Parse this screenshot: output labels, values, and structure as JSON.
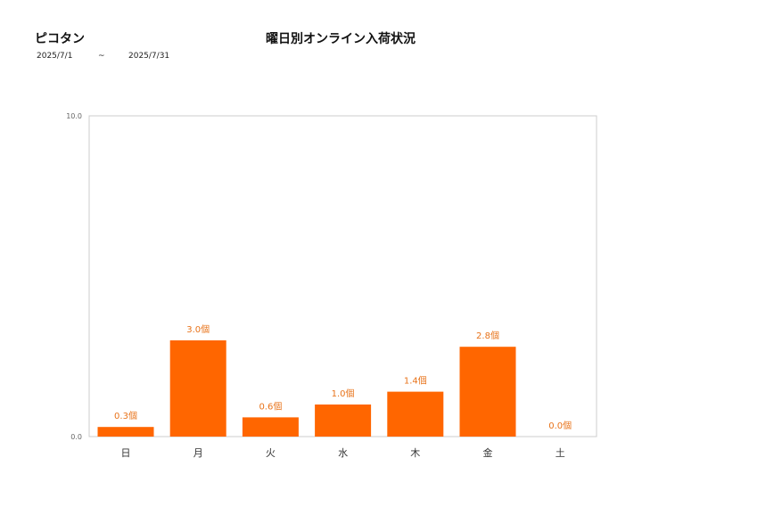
{
  "header": {
    "store_name": "ピコタン",
    "date_from": "2025/7/1",
    "date_separator": "~",
    "date_to": "2025/7/31"
  },
  "colors": {
    "bar": "#ff6600",
    "label": "#e8731a",
    "axis": "#cccccc"
  },
  "chart_data": {
    "type": "bar",
    "title": "曜日別オンライン入荷状況",
    "categories": [
      "日",
      "月",
      "火",
      "水",
      "木",
      "金",
      "土"
    ],
    "values": [
      0.3,
      3.0,
      0.6,
      1.0,
      1.4,
      2.8,
      0.0
    ],
    "data_labels": [
      "0.3個",
      "3.0個",
      "0.6個",
      "1.0個",
      "1.4個",
      "2.8個",
      "0.0個"
    ],
    "ylim": [
      0,
      10
    ],
    "yticks": [
      "0.0",
      "10.0"
    ],
    "xlabel": "",
    "ylabel": "",
    "grid": false,
    "legend": "none"
  }
}
